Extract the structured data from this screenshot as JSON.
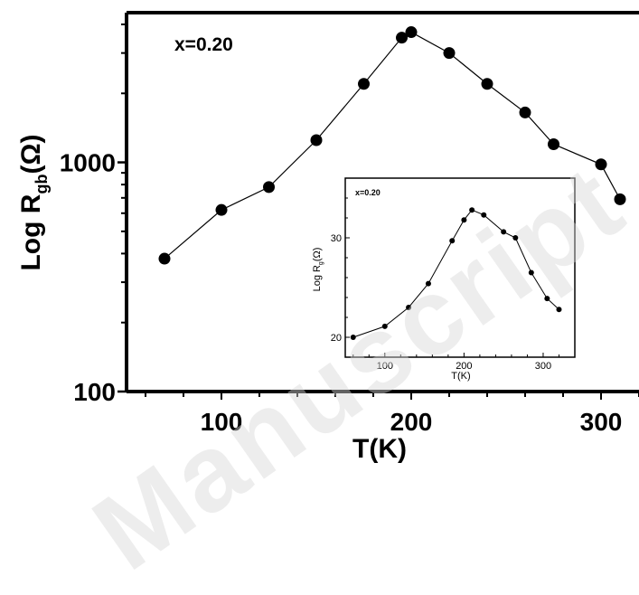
{
  "chart_data": [
    {
      "type": "scatter",
      "id": "main",
      "annotation": "x=0.20",
      "xlabel": "T(K)",
      "ylabel_parts": {
        "base": "Log R",
        "sub": "gb",
        "tail": "(Ω)"
      },
      "x_ticks": [
        "100",
        "200",
        "300"
      ],
      "y_ticks": [
        "100",
        "1000"
      ],
      "xlim": [
        50,
        320
      ],
      "ylim": [
        100,
        4500
      ],
      "y_scale": "log",
      "series": [
        {
          "x": [
            70,
            100,
            125,
            150,
            175,
            195,
            200,
            220,
            240,
            260,
            275,
            300,
            310
          ],
          "y": [
            380,
            620,
            780,
            1250,
            2200,
            3500,
            3700,
            3000,
            2200,
            1650,
            1200,
            980,
            690
          ]
        }
      ],
      "line": true,
      "grid": false
    },
    {
      "type": "scatter",
      "id": "inset",
      "annotation": "x=0.20",
      "xlabel": "T(K)",
      "ylabel_parts": {
        "base": "Log R",
        "sub": "g",
        "tail": "(Ω)"
      },
      "x_ticks": [
        "100",
        "200",
        "300"
      ],
      "y_ticks": [
        "20",
        "30"
      ],
      "xlim": [
        50,
        340
      ],
      "ylim": [
        18,
        36
      ],
      "series": [
        {
          "x": [
            60,
            100,
            130,
            155,
            185,
            200,
            210,
            225,
            250,
            265,
            285,
            305,
            320
          ],
          "y": [
            20,
            21.1,
            23,
            25.4,
            29.7,
            31.8,
            32.8,
            32.3,
            30.6,
            30,
            26.5,
            23.9,
            22.8
          ]
        }
      ],
      "line": true,
      "grid": false
    }
  ],
  "watermark": "Manuscript"
}
